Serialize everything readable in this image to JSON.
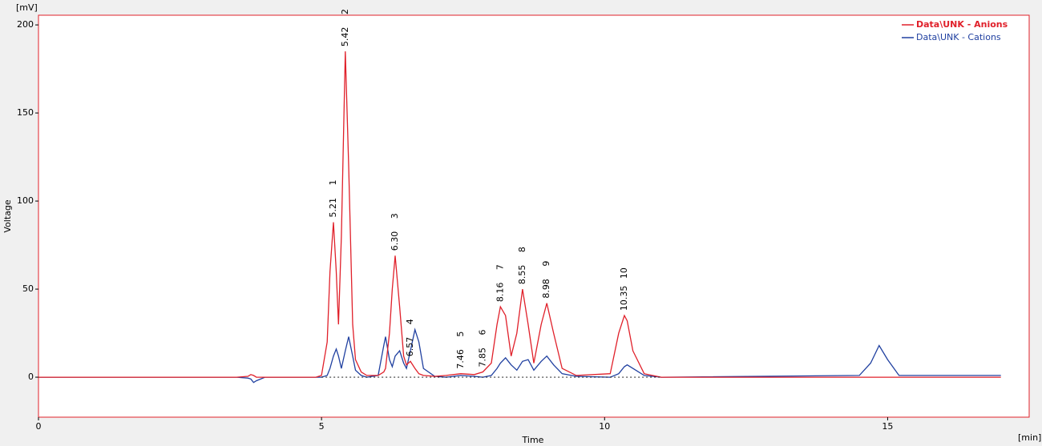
{
  "chart_data": {
    "type": "line",
    "y_unit": "[mV]",
    "x_unit": "[min]",
    "y_label": "Voltage",
    "x_label": "Time",
    "xlim": [
      0,
      17.5
    ],
    "ylim": [
      -22.7,
      205.5
    ],
    "xticks": [
      0,
      5,
      10,
      15
    ],
    "yticks": [
      0,
      50,
      100,
      150,
      200
    ],
    "x": [
      0,
      3.5,
      3.7,
      3.75,
      3.8,
      3.85,
      4.0,
      4.9,
      5.0,
      5.1,
      5.15,
      5.21,
      5.26,
      5.3,
      5.35,
      5.42,
      5.48,
      5.55,
      5.6,
      5.7,
      5.8,
      6.0,
      6.1,
      6.13,
      6.2,
      6.25,
      6.3,
      6.38,
      6.45,
      6.5,
      6.57,
      6.65,
      6.72,
      6.8,
      7.0,
      7.2,
      7.46,
      7.7,
      7.85,
      8.0,
      8.1,
      8.16,
      8.25,
      8.35,
      8.45,
      8.55,
      8.65,
      8.75,
      8.88,
      8.98,
      9.1,
      9.25,
      9.5,
      10.1,
      10.25,
      10.35,
      10.4,
      10.5,
      10.7,
      11.0,
      14.5,
      14.7,
      14.85,
      15.0,
      15.2,
      17.0
    ],
    "series": [
      {
        "name": "Data\\UNK - Anions",
        "color": "#e0202a",
        "values": [
          0,
          0,
          0.5,
          1.5,
          1,
          0,
          0,
          0,
          1,
          20,
          60,
          88,
          60,
          30,
          80,
          185,
          120,
          30,
          10,
          3,
          1,
          1,
          3,
          5,
          25,
          50,
          69,
          40,
          12,
          7,
          9,
          5,
          2,
          1,
          0.5,
          1,
          2,
          1.5,
          3,
          8,
          30,
          40,
          35,
          12,
          25,
          50,
          30,
          8,
          30,
          42,
          25,
          5,
          1,
          2,
          25,
          35,
          32,
          15,
          2,
          0,
          0,
          0,
          0,
          0,
          0,
          0
        ]
      },
      {
        "name": "Data\\UNK - Cations",
        "color": "#2040a0",
        "values": [
          0,
          0,
          -0.5,
          -1,
          -3,
          -2,
          0,
          0,
          0,
          1,
          5,
          12,
          16,
          12,
          5,
          15,
          23,
          12,
          4,
          1,
          0,
          1,
          18,
          23,
          10,
          6,
          12,
          15,
          8,
          5,
          15,
          27,
          20,
          5,
          0.5,
          0,
          1,
          0.5,
          0,
          1,
          5,
          8,
          11,
          7,
          4,
          9,
          10,
          4,
          9,
          12,
          7,
          2,
          0.5,
          0,
          2,
          6,
          7,
          5,
          1,
          0,
          1,
          8,
          18,
          10,
          1,
          1
        ]
      }
    ],
    "peaks": [
      {
        "value": 5.21,
        "label": "5.21",
        "id": "1"
      },
      {
        "value": 5.42,
        "label": "5.42",
        "id": "2"
      },
      {
        "value": 6.3,
        "label": "6.30",
        "id": "3"
      },
      {
        "value": 6.57,
        "label": "6.57",
        "id": "4"
      },
      {
        "value": 7.46,
        "label": "7.46",
        "id": "5"
      },
      {
        "value": 7.85,
        "label": "7.85",
        "id": "6"
      },
      {
        "value": 8.16,
        "label": "8.16",
        "id": "7"
      },
      {
        "value": 8.55,
        "label": "8.55",
        "id": "8"
      },
      {
        "value": 8.98,
        "label": "8.98",
        "id": "9"
      },
      {
        "value": 10.35,
        "label": "10.35",
        "id": "10"
      }
    ]
  }
}
